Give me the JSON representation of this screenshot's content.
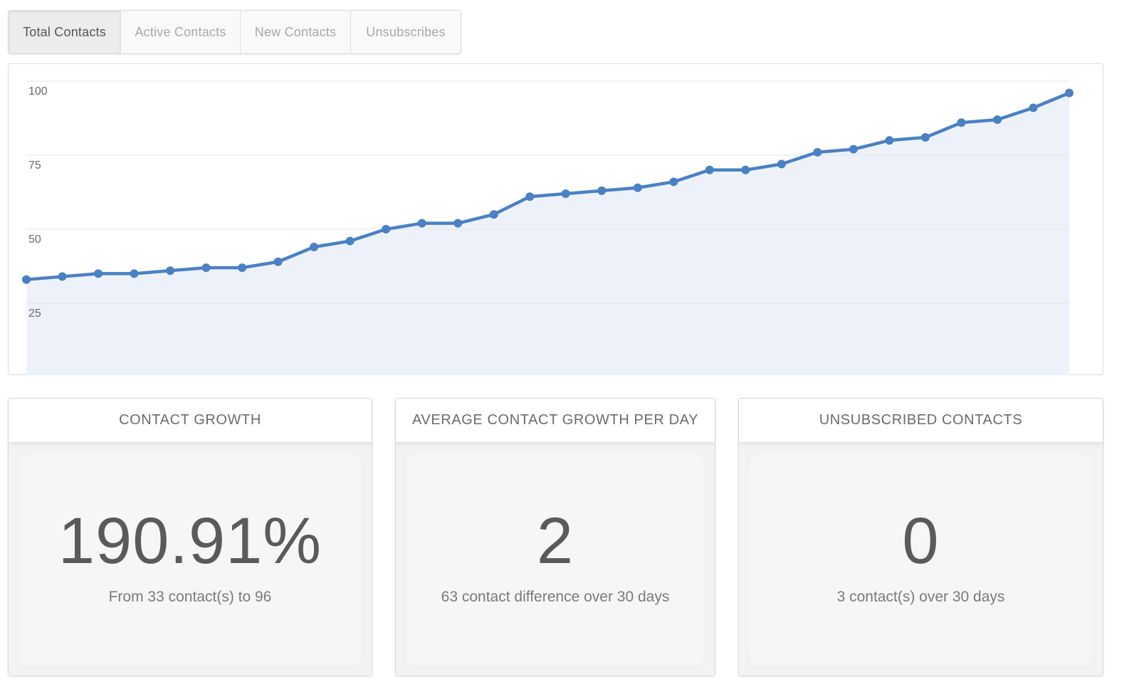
{
  "tabs": [
    {
      "label": "Total Contacts",
      "active": true
    },
    {
      "label": "Active Contacts",
      "active": false
    },
    {
      "label": "New Contacts",
      "active": false
    },
    {
      "label": "Unsubscribes",
      "active": false
    }
  ],
  "chart_data": {
    "type": "area",
    "title": "",
    "xlabel": "",
    "ylabel": "",
    "ylim": [
      0,
      100
    ],
    "y_ticks": [
      25,
      50,
      75,
      100
    ],
    "grid": true,
    "legend": "none",
    "line_color": "#4a80c4",
    "fill_color": "#edf2fa",
    "series": [
      {
        "values": [
          33,
          34,
          35,
          35,
          36,
          37,
          37,
          39,
          44,
          46,
          50,
          52,
          52,
          55,
          61,
          62,
          63,
          64,
          66,
          70,
          70,
          72,
          76,
          77,
          80,
          81,
          86,
          87,
          91,
          96
        ]
      }
    ]
  },
  "cards": [
    {
      "title": "CONTACT GROWTH",
      "value": "190.91%",
      "subtitle": "From 33 contact(s) to 96"
    },
    {
      "title": "AVERAGE CONTACT GROWTH PER DAY",
      "value": "2",
      "subtitle": "63 contact difference over 30 days"
    },
    {
      "title": "UNSUBSCRIBED CONTACTS",
      "value": "0",
      "subtitle": "3 contact(s) over 30 days"
    }
  ]
}
